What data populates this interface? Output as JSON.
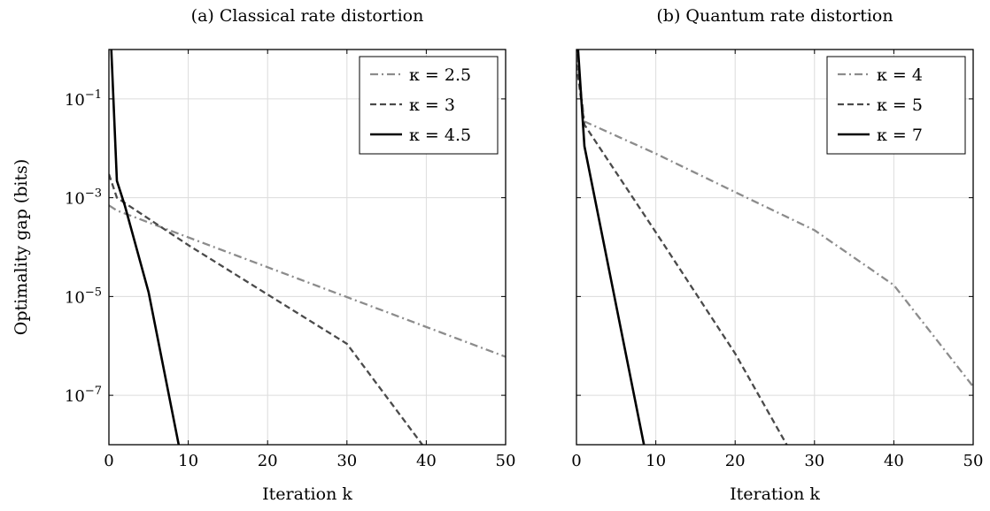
{
  "chart_data": [
    {
      "type": "line",
      "title": "(a) Classical rate distortion",
      "xlabel": "Iteration k",
      "ylabel": "Optimality gap (bits)",
      "xlim": [
        0,
        50
      ],
      "ylim": [
        1e-08,
        1
      ],
      "yscale": "log",
      "grid": true,
      "legend_position": "top-right",
      "x_ticks": [
        "0",
        "10",
        "20",
        "30",
        "40",
        "50"
      ],
      "y_ticks": [
        {
          "base": "10",
          "exp": "−1",
          "value": 0.1
        },
        {
          "base": "10",
          "exp": "−3",
          "value": 0.001
        },
        {
          "base": "10",
          "exp": "−5",
          "value": 1e-05
        },
        {
          "base": "10",
          "exp": "−7",
          "value": 1e-07
        }
      ],
      "series": [
        {
          "name": "κ = 2.5",
          "style": "dashdot",
          "color": "#8c8c8c",
          "x": [
            0,
            1,
            50
          ],
          "y": [
            0.0007,
            0.00055,
            6e-07
          ]
        },
        {
          "name": "κ = 3",
          "style": "dashed",
          "color": "#4a4a4a",
          "x": [
            0,
            1,
            10,
            20,
            30,
            39.5
          ],
          "y": [
            0.003,
            0.001,
            0.00011,
            1.1e-05,
            1.1e-06,
            1e-08
          ]
        },
        {
          "name": "κ = 4.5",
          "style": "solid",
          "color": "#000000",
          "x": [
            0.3,
            1,
            2,
            5,
            8.8
          ],
          "y": [
            1.0,
            0.0022,
            0.0007,
            1.22e-05,
            1e-08
          ]
        }
      ]
    },
    {
      "type": "line",
      "title": "(b) Quantum rate distortion",
      "xlabel": "Iteration k",
      "ylabel": "",
      "xlim": [
        0,
        50
      ],
      "ylim": [
        1e-08,
        1
      ],
      "yscale": "log",
      "grid": true,
      "legend_position": "top-right",
      "x_ticks": [
        "0",
        "10",
        "20",
        "30",
        "40",
        "50"
      ],
      "y_ticks": [],
      "series": [
        {
          "name": "κ = 4",
          "style": "dashdot",
          "color": "#8c8c8c",
          "x": [
            0,
            1,
            10,
            20,
            30,
            40,
            50
          ],
          "y": [
            0.8,
            0.035,
            0.0078,
            0.0013,
            0.00022,
            1.7e-05,
            1.5e-07
          ]
        },
        {
          "name": "κ = 5",
          "style": "dashed",
          "color": "#4a4a4a",
          "x": [
            0,
            1,
            10,
            20,
            26.5
          ],
          "y": [
            0.5,
            0.03,
            0.0002,
            7e-07,
            1e-08
          ]
        },
        {
          "name": "κ = 7",
          "style": "solid",
          "color": "#000000",
          "x": [
            0.2,
            1,
            8.5
          ],
          "y": [
            1.0,
            0.011,
            1e-08
          ]
        }
      ]
    }
  ]
}
